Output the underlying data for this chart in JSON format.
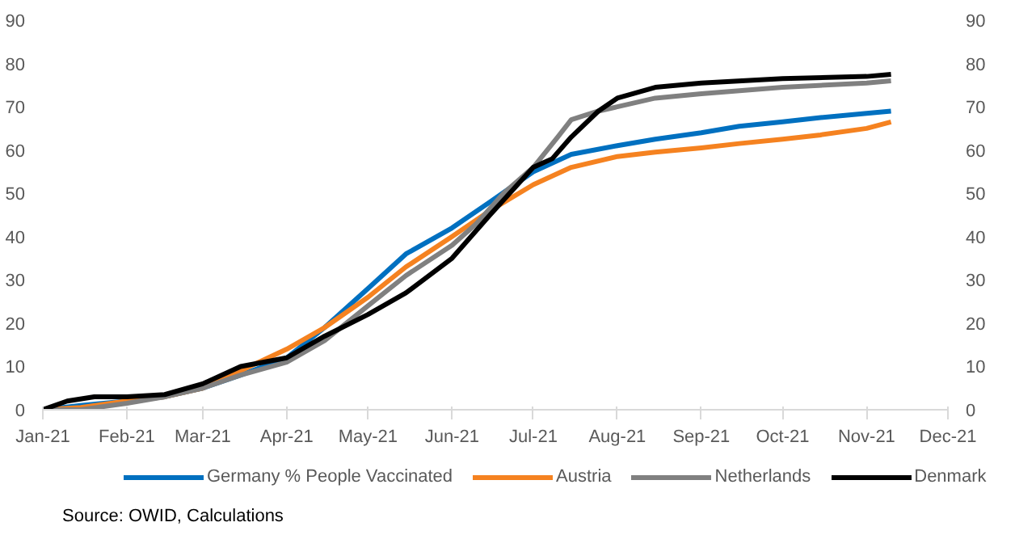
{
  "chart_data": {
    "type": "line",
    "annotations": [
      "Source: OWID, Calculations"
    ],
    "xlim": [
      "2021-01-01",
      "2021-12-01"
    ],
    "xticks": [
      {
        "value": "2021-01-01",
        "label": "Jan-21"
      },
      {
        "value": "2021-02-01",
        "label": "Feb-21"
      },
      {
        "value": "2021-03-01",
        "label": "Mar-21"
      },
      {
        "value": "2021-04-01",
        "label": "Apr-21"
      },
      {
        "value": "2021-05-01",
        "label": "May-21"
      },
      {
        "value": "2021-06-01",
        "label": "Jun-21"
      },
      {
        "value": "2021-07-01",
        "label": "Jul-21"
      },
      {
        "value": "2021-08-01",
        "label": "Aug-21"
      },
      {
        "value": "2021-09-01",
        "label": "Sep-21"
      },
      {
        "value": "2021-10-01",
        "label": "Oct-21"
      },
      {
        "value": "2021-11-01",
        "label": "Nov-21"
      },
      {
        "value": "2021-12-01",
        "label": "Dec-21"
      }
    ],
    "ylim": [
      0,
      90
    ],
    "yticks": [
      0,
      10,
      20,
      30,
      40,
      50,
      60,
      70,
      80,
      90
    ],
    "y2lim": [
      0,
      90
    ],
    "y2ticks": [
      0,
      10,
      20,
      30,
      40,
      50,
      60,
      70,
      80,
      90
    ],
    "grid": false,
    "legend": "bottom",
    "marker": "none",
    "line_style": "solid",
    "series": [
      {
        "name": "Germany % People Vaccinated",
        "color": "#0070c0",
        "x": [
          "2021-01-01",
          "2021-01-15",
          "2021-02-01",
          "2021-02-15",
          "2021-03-01",
          "2021-03-15",
          "2021-04-01",
          "2021-04-15",
          "2021-05-01",
          "2021-05-15",
          "2021-06-01",
          "2021-06-15",
          "2021-07-01",
          "2021-07-15",
          "2021-08-01",
          "2021-08-15",
          "2021-09-01",
          "2021-09-15",
          "2021-10-01",
          "2021-10-15",
          "2021-11-01",
          "2021-11-10"
        ],
        "values": [
          0,
          1,
          2,
          3,
          5,
          8,
          12,
          19,
          28,
          36,
          42,
          48,
          55,
          59,
          61,
          62.5,
          64,
          65.5,
          66.5,
          67.5,
          68.5,
          69
        ]
      },
      {
        "name": "Austria",
        "color": "#f58220",
        "x": [
          "2021-01-01",
          "2021-01-15",
          "2021-02-01",
          "2021-02-15",
          "2021-03-01",
          "2021-03-15",
          "2021-04-01",
          "2021-04-15",
          "2021-05-01",
          "2021-05-15",
          "2021-06-01",
          "2021-06-15",
          "2021-07-01",
          "2021-07-15",
          "2021-08-01",
          "2021-08-15",
          "2021-09-01",
          "2021-09-15",
          "2021-10-01",
          "2021-10-15",
          "2021-11-01",
          "2021-11-10"
        ],
        "values": [
          0,
          0.5,
          2,
          3,
          5,
          9,
          14,
          19,
          26,
          33,
          40,
          46,
          52,
          56,
          58.5,
          59.5,
          60.5,
          61.5,
          62.5,
          63.5,
          65,
          66.5
        ]
      },
      {
        "name": "Netherlands",
        "color": "#808080",
        "x": [
          "2021-01-01",
          "2021-01-15",
          "2021-02-01",
          "2021-02-15",
          "2021-03-01",
          "2021-03-15",
          "2021-04-01",
          "2021-04-15",
          "2021-05-01",
          "2021-05-15",
          "2021-06-01",
          "2021-06-10",
          "2021-06-20",
          "2021-07-01",
          "2021-07-10",
          "2021-07-15",
          "2021-07-25",
          "2021-08-01",
          "2021-08-15",
          "2021-09-01",
          "2021-10-01",
          "2021-11-01",
          "2021-11-10"
        ],
        "values": [
          0,
          0,
          1.5,
          3,
          5,
          8,
          11,
          16,
          24,
          31,
          38,
          43,
          50,
          56,
          63,
          67,
          69,
          70,
          72,
          73,
          74.5,
          75.5,
          76
        ]
      },
      {
        "name": "Denmark",
        "color": "#000000",
        "x": [
          "2021-01-01",
          "2021-01-10",
          "2021-01-20",
          "2021-02-01",
          "2021-02-15",
          "2021-03-01",
          "2021-03-15",
          "2021-04-01",
          "2021-04-15",
          "2021-05-01",
          "2021-05-15",
          "2021-06-01",
          "2021-06-15",
          "2021-07-01",
          "2021-07-08",
          "2021-07-15",
          "2021-07-25",
          "2021-08-01",
          "2021-08-15",
          "2021-09-01",
          "2021-10-01",
          "2021-11-01",
          "2021-11-10"
        ],
        "values": [
          0,
          2,
          3,
          3,
          3.5,
          6,
          10,
          12,
          17,
          22,
          27,
          35,
          45,
          56,
          58,
          63,
          69,
          72,
          74.5,
          75.5,
          76.5,
          77,
          77.5
        ]
      }
    ]
  }
}
